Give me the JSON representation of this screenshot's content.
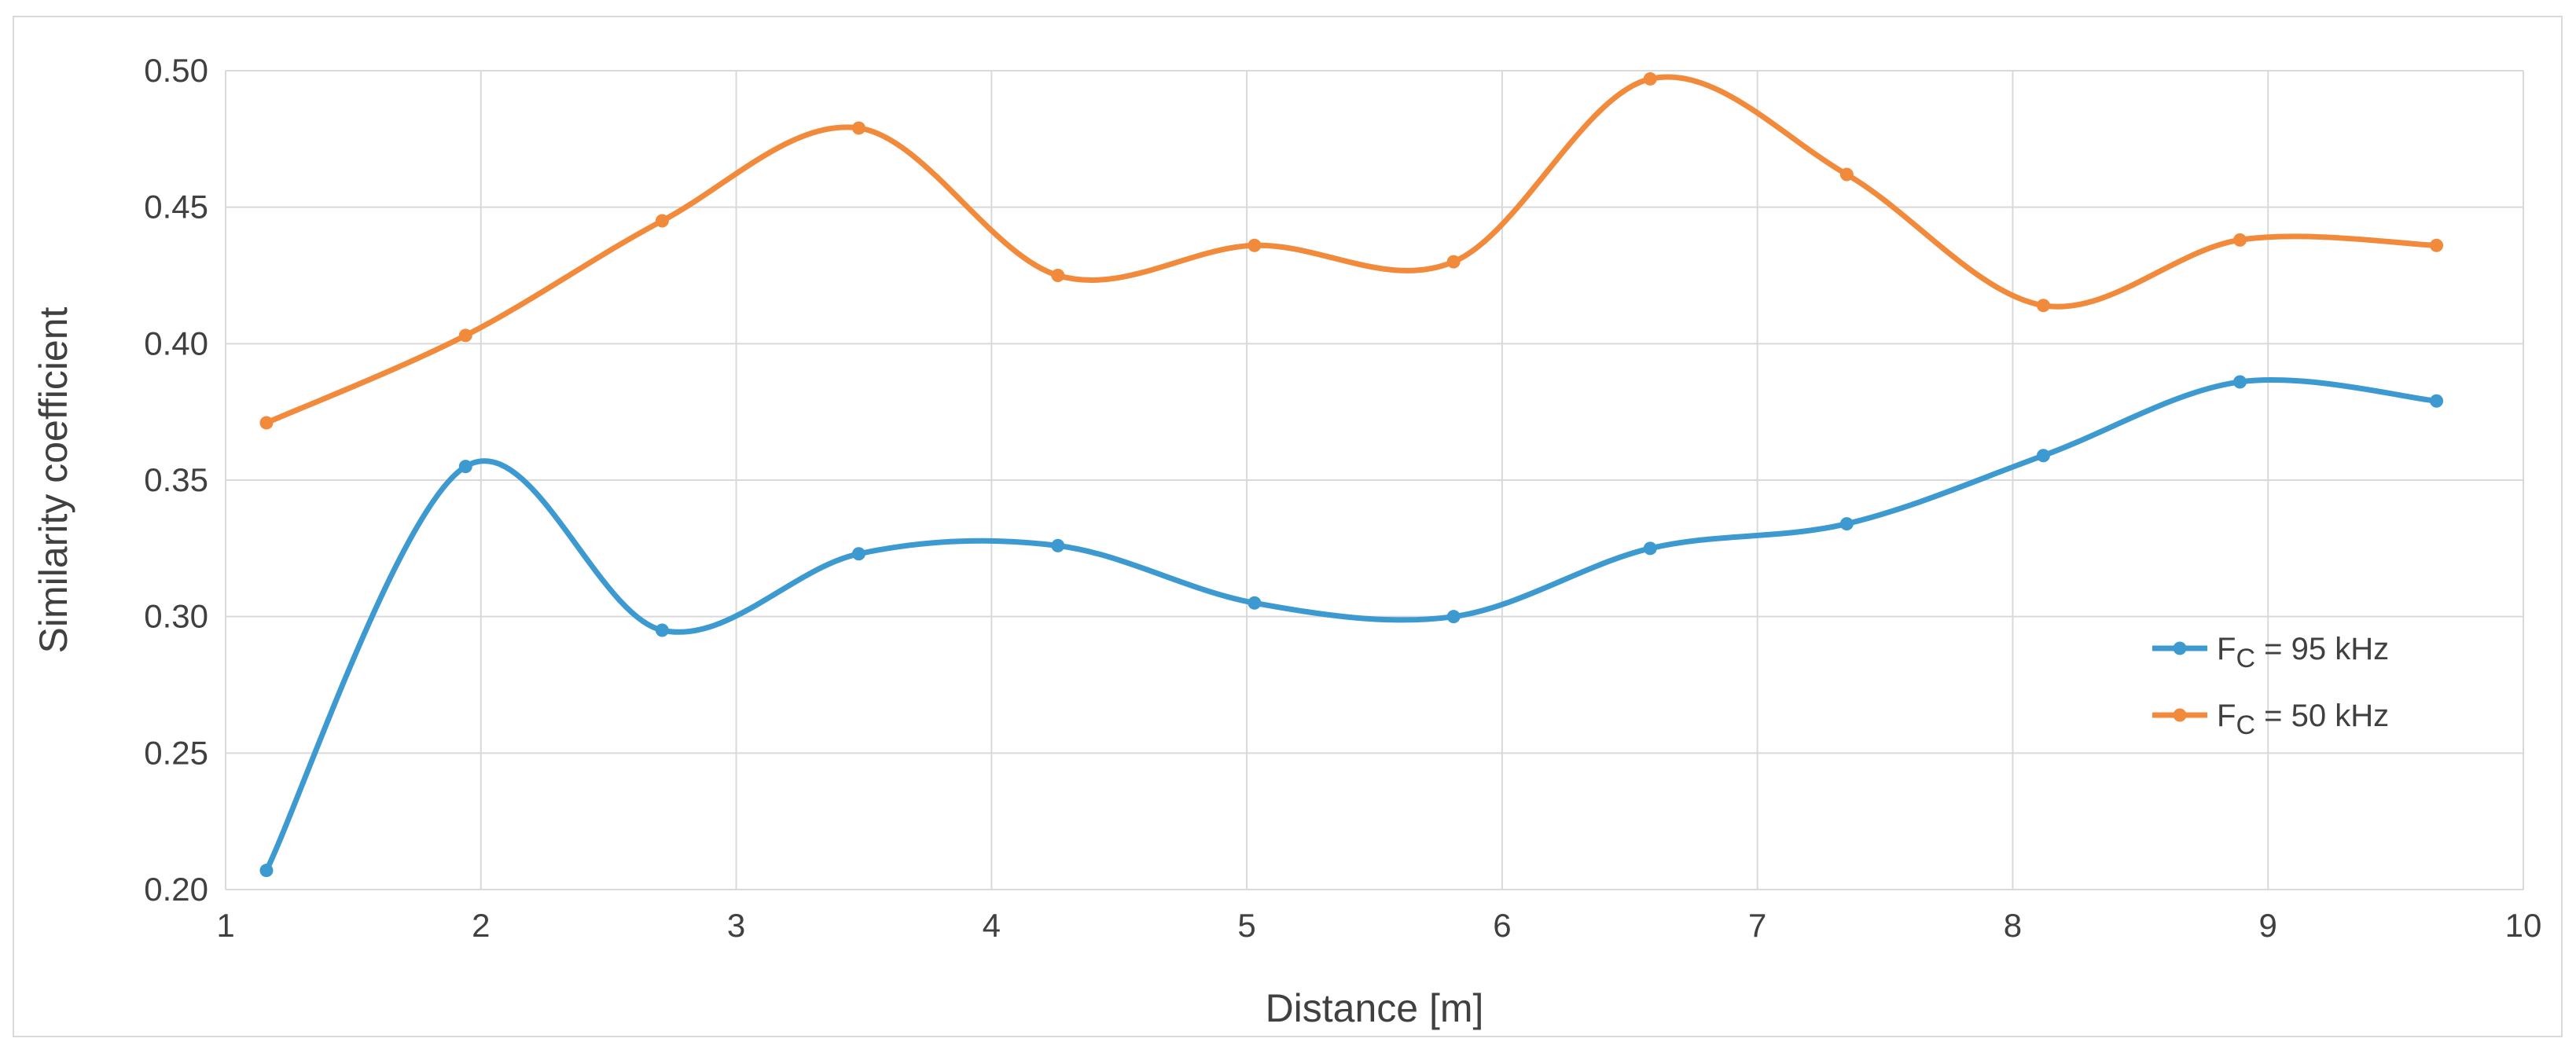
{
  "chart_data": {
    "type": "line",
    "xlabel": "Distance [m]",
    "ylabel": "Similarity coefficient",
    "xlim": [
      1,
      10
    ],
    "ylim": [
      0.2,
      0.5
    ],
    "x_ticks": [
      "1",
      "2",
      "3",
      "4",
      "5",
      "6",
      "7",
      "8",
      "9",
      "10"
    ],
    "y_ticks": [
      "0.20",
      "0.25",
      "0.30",
      "0.35",
      "0.40",
      "0.45",
      "0.50"
    ],
    "grid": true,
    "smooth": true,
    "legend_position": "right",
    "series": [
      {
        "name": "F",
        "name_sub": "C",
        "name_suffix": " = 95 kHz",
        "color": "#3d9ad1",
        "x": [
          1.16,
          1.94,
          2.71,
          3.48,
          4.26,
          5.03,
          5.81,
          6.58,
          7.35,
          8.12,
          8.89,
          9.66
        ],
        "y": [
          0.207,
          0.355,
          0.295,
          0.323,
          0.326,
          0.305,
          0.3,
          0.325,
          0.334,
          0.359,
          0.386,
          0.379
        ]
      },
      {
        "name": "F",
        "name_sub": "C",
        "name_suffix": " = 50 kHz",
        "color": "#f28a3c",
        "x": [
          1.16,
          1.94,
          2.71,
          3.48,
          4.26,
          5.03,
          5.81,
          6.58,
          7.35,
          8.12,
          8.89,
          9.66
        ],
        "y": [
          0.371,
          0.403,
          0.445,
          0.479,
          0.425,
          0.436,
          0.43,
          0.497,
          0.462,
          0.414,
          0.438,
          0.436
        ]
      }
    ]
  }
}
